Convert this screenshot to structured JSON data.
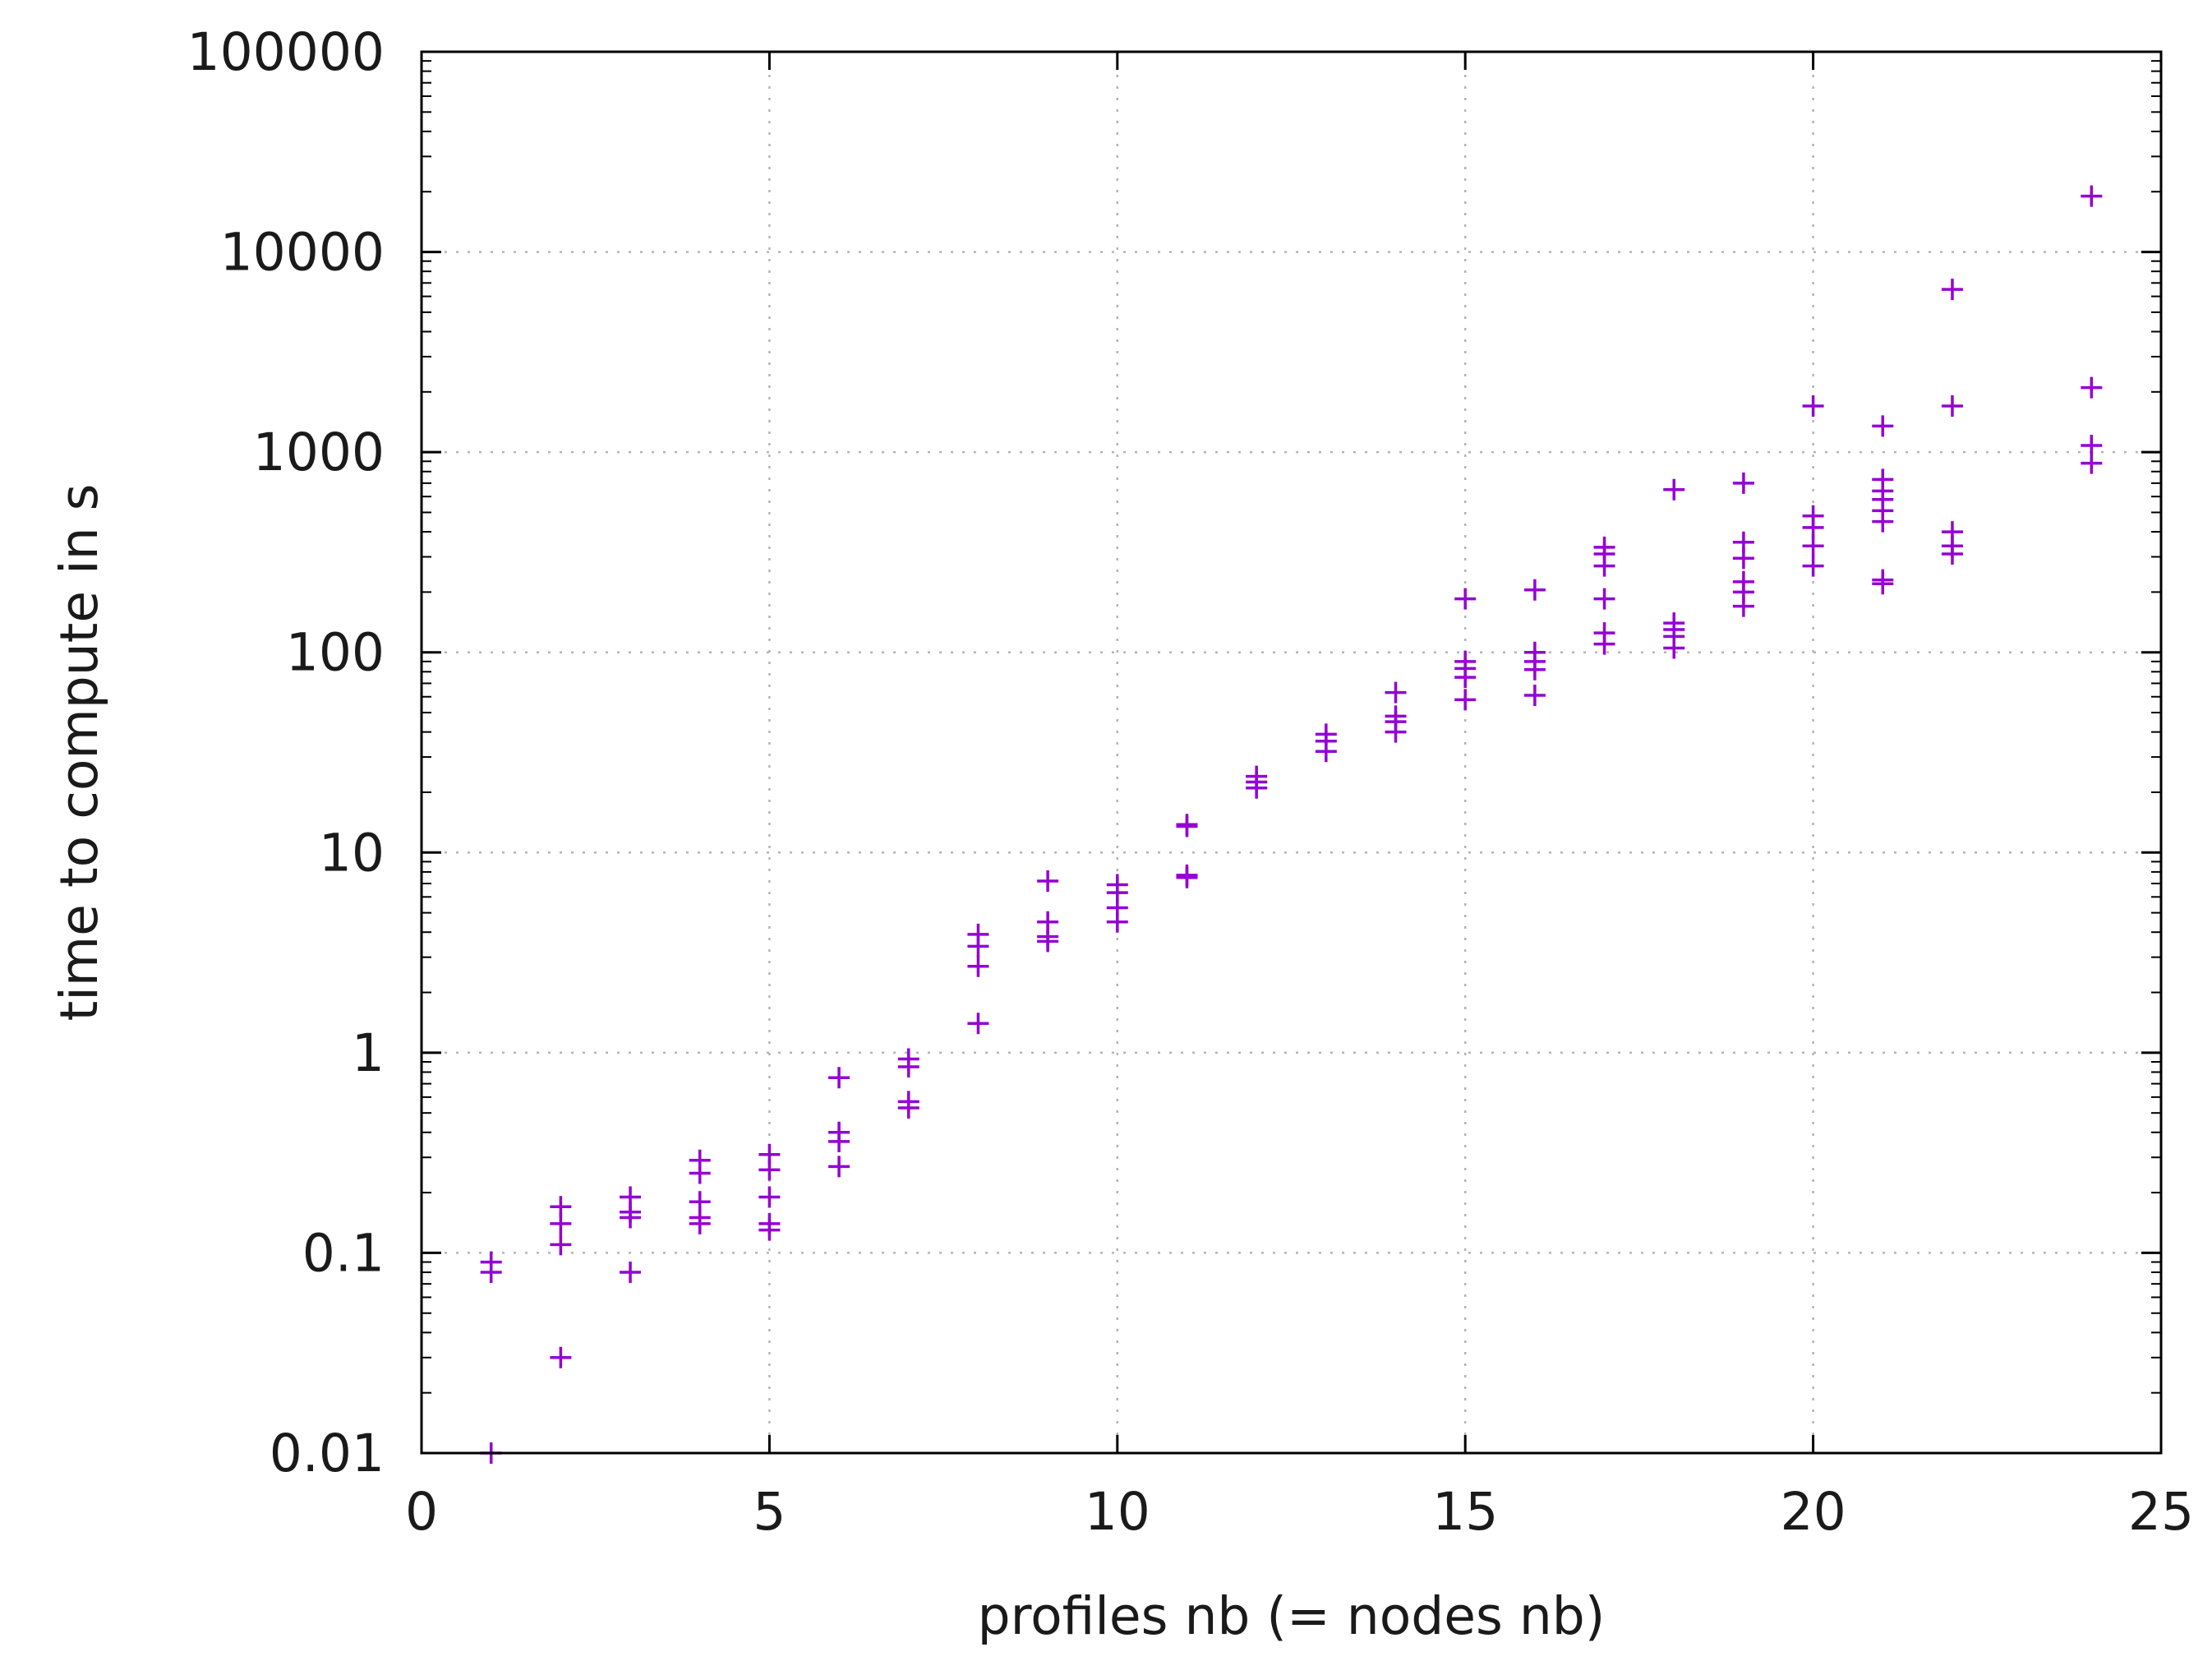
{
  "chart_data": {
    "type": "scatter",
    "title": "",
    "xlabel": "profiles nb (= nodes nb)",
    "ylabel": "time to compute in s",
    "xlim": [
      0,
      25
    ],
    "ylim": [
      0.01,
      100000
    ],
    "yscale": "log",
    "grid": true,
    "legend": "none",
    "marker": "plus",
    "color": "#9400d3",
    "x_ticks": [
      0,
      5,
      10,
      15,
      20,
      25
    ],
    "x_tick_labels": [
      "0",
      "5",
      "10",
      "15",
      "20",
      "25"
    ],
    "y_ticks": [
      0.01,
      0.1,
      1,
      10,
      100,
      1000,
      10000,
      100000
    ],
    "y_tick_labels": [
      "0.01",
      "0.1",
      "1",
      "10",
      "100",
      "1000",
      "10000",
      "100000"
    ],
    "series": [
      {
        "points": [
          [
            1,
            0.01
          ],
          [
            1,
            0.08
          ],
          [
            1,
            0.09
          ],
          [
            2,
            0.03
          ],
          [
            2,
            0.11
          ],
          [
            2,
            0.14
          ],
          [
            2,
            0.17
          ],
          [
            3,
            0.08
          ],
          [
            3,
            0.15
          ],
          [
            3,
            0.16
          ],
          [
            3,
            0.19
          ],
          [
            4,
            0.14
          ],
          [
            4,
            0.15
          ],
          [
            4,
            0.18
          ],
          [
            4,
            0.25
          ],
          [
            4,
            0.29
          ],
          [
            5,
            0.13
          ],
          [
            5,
            0.14
          ],
          [
            5,
            0.19
          ],
          [
            5,
            0.26
          ],
          [
            5,
            0.31
          ],
          [
            6,
            0.27
          ],
          [
            6,
            0.36
          ],
          [
            6,
            0.4
          ],
          [
            6,
            0.75
          ],
          [
            7,
            0.53
          ],
          [
            7,
            0.57
          ],
          [
            7,
            0.85
          ],
          [
            7,
            0.93
          ],
          [
            8,
            1.4
          ],
          [
            8,
            2.7
          ],
          [
            8,
            3.4
          ],
          [
            8,
            3.9
          ],
          [
            9,
            3.6
          ],
          [
            9,
            3.8
          ],
          [
            9,
            4.5
          ],
          [
            9,
            7.2
          ],
          [
            10,
            4.5
          ],
          [
            10,
            5.3
          ],
          [
            10,
            6.3
          ],
          [
            10,
            6.9
          ],
          [
            11,
            7.5
          ],
          [
            11,
            7.7
          ],
          [
            11,
            13.5
          ],
          [
            11,
            13.8
          ],
          [
            12,
            21
          ],
          [
            12,
            22.5
          ],
          [
            12,
            24
          ],
          [
            13,
            32
          ],
          [
            13,
            36
          ],
          [
            13,
            39
          ],
          [
            14,
            40
          ],
          [
            14,
            45
          ],
          [
            14,
            48
          ],
          [
            14,
            63
          ],
          [
            15,
            58
          ],
          [
            15,
            75
          ],
          [
            15,
            83
          ],
          [
            15,
            90
          ],
          [
            15,
            185
          ],
          [
            16,
            61
          ],
          [
            16,
            82
          ],
          [
            16,
            90
          ],
          [
            16,
            100
          ],
          [
            16,
            205
          ],
          [
            17,
            110
          ],
          [
            17,
            125
          ],
          [
            17,
            185
          ],
          [
            17,
            270
          ],
          [
            17,
            310
          ],
          [
            17,
            335
          ],
          [
            18,
            105
          ],
          [
            18,
            120
          ],
          [
            18,
            130
          ],
          [
            18,
            140
          ],
          [
            18,
            650
          ],
          [
            19,
            170
          ],
          [
            19,
            200
          ],
          [
            19,
            225
          ],
          [
            19,
            295
          ],
          [
            19,
            355
          ],
          [
            19,
            700
          ],
          [
            20,
            270
          ],
          [
            20,
            340
          ],
          [
            20,
            420
          ],
          [
            20,
            480
          ],
          [
            20,
            1700
          ],
          [
            21,
            220
          ],
          [
            21,
            230
          ],
          [
            21,
            450
          ],
          [
            21,
            510
          ],
          [
            21,
            580
          ],
          [
            21,
            640
          ],
          [
            21,
            730
          ],
          [
            21,
            1350
          ],
          [
            22,
            310
          ],
          [
            22,
            340
          ],
          [
            22,
            400
          ],
          [
            22,
            1700
          ],
          [
            22,
            6500
          ],
          [
            24,
            880
          ],
          [
            24,
            1080
          ],
          [
            24,
            2100
          ],
          [
            24,
            19000
          ]
        ]
      }
    ]
  }
}
